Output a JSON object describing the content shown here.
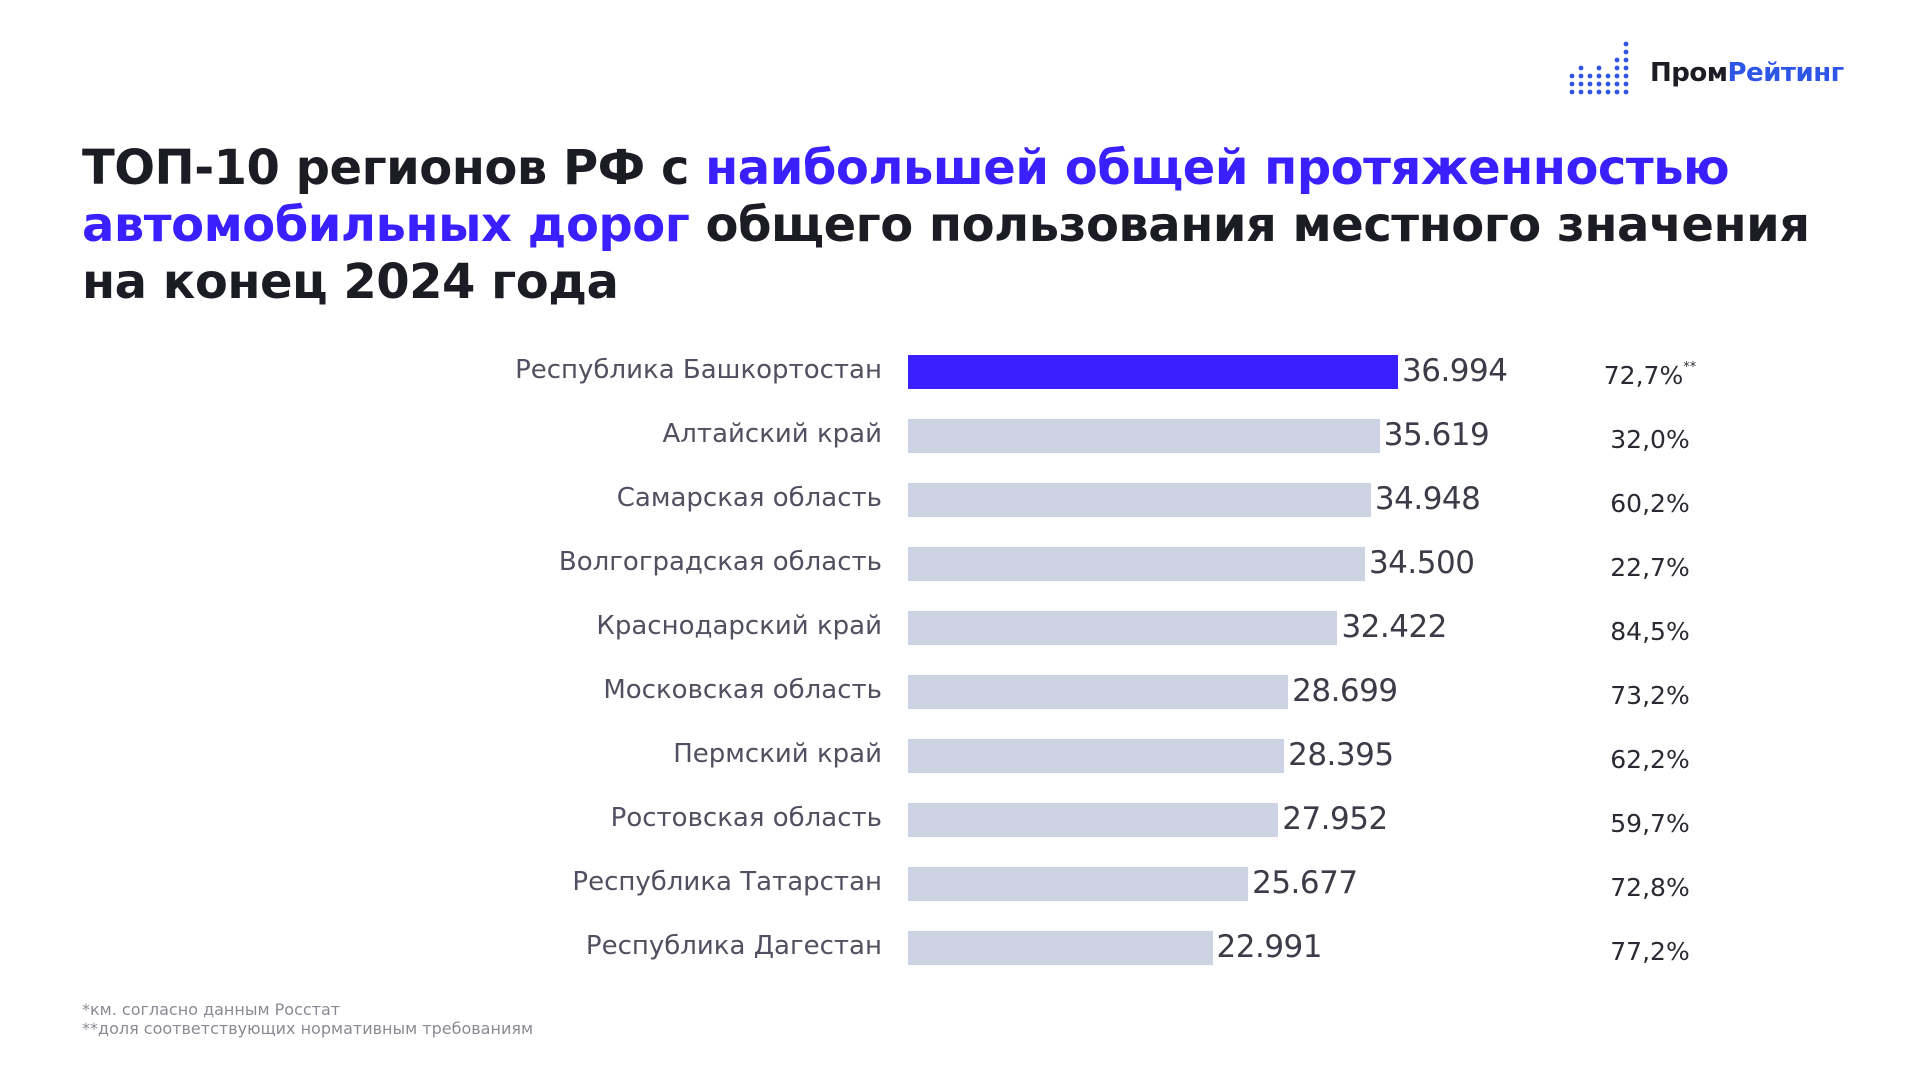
{
  "brand": {
    "part1": "Пром",
    "part2": "Рейтинг"
  },
  "title": {
    "part1": "ТОП-10 регионов РФ с ",
    "highlight": "наибольшей общей протяженностью автомобильных дорог",
    "part2": " общего пользования местного значения на конец 2024 года"
  },
  "colors": {
    "accent": "#3a1fff",
    "bar": "#cdd3e3",
    "logo": "#2f55e6"
  },
  "chart_data": {
    "type": "bar",
    "orientation": "horizontal",
    "categories": [
      "Республика Башкортостан",
      "Алтайский край",
      "Самарская область",
      "Волгоградская область",
      "Краснодарский край",
      "Московская область",
      "Пермский край",
      "Ростовская область",
      "Республика Татарстан",
      "Республика Дагестан"
    ],
    "values": [
      36994,
      35619,
      34948,
      34500,
      32422,
      28699,
      28395,
      27952,
      25677,
      22991
    ],
    "value_labels": [
      "36.994",
      "35.619",
      "34.948",
      "34.500",
      "32.422",
      "28.699",
      "28.395",
      "27.952",
      "25.677",
      "22.991"
    ],
    "shares": [
      "72,7%",
      "32,0%",
      "60,2%",
      "22,7%",
      "84,5%",
      "73,2%",
      "62,2%",
      "59,7%",
      "72,8%",
      "77,2%"
    ],
    "share_note_marker": "**",
    "highlight_index": 0,
    "units": "км"
  },
  "footnotes": [
    "*км. согласно данным Росстат",
    "**доля соответствующих нормативным требованиям"
  ]
}
